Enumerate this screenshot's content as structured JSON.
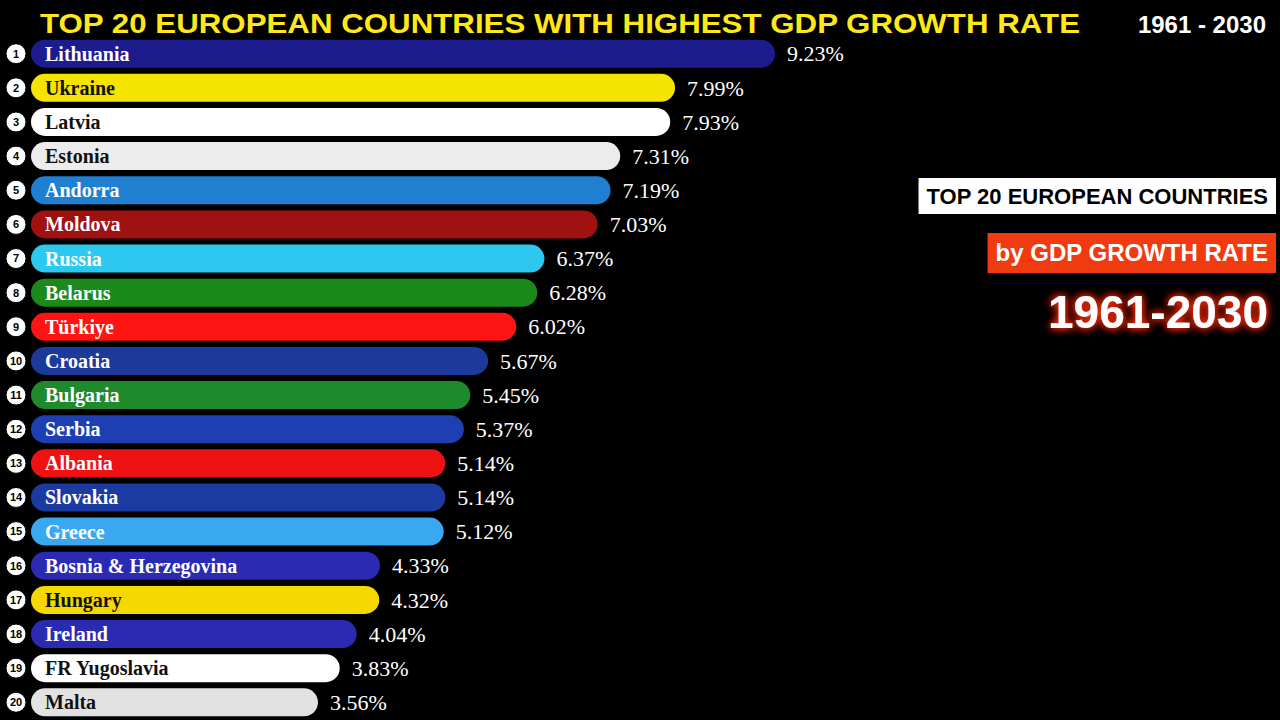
{
  "chart_data": {
    "type": "bar",
    "title": "TOP 20 EUROPEAN COUNTRIES WITH HIGHEST GDP GROWTH RATE",
    "subtitle": "1961 - 2030",
    "annotations": [
      "TOP 20 EUROPEAN COUNTRIES",
      "by GDP GROWTH RATE",
      "1961-2030"
    ],
    "orientation": "horizontal",
    "ranks": [
      1,
      2,
      3,
      4,
      5,
      6,
      7,
      8,
      9,
      10,
      11,
      12,
      13,
      14,
      15,
      16,
      17,
      18,
      19,
      20
    ],
    "categories": [
      "Lithuania",
      "Ukraine",
      "Latvia",
      "Estonia",
      "Andorra",
      "Moldova",
      "Russia",
      "Belarus",
      "Türkiye",
      "Croatia",
      "Bulgaria",
      "Serbia",
      "Albania",
      "Slovakia",
      "Greece",
      "Bosnia & Herzegovina",
      "Hungary",
      "Ireland",
      "FR Yugoslavia",
      "Malta"
    ],
    "values": [
      9.23,
      7.99,
      7.93,
      7.31,
      7.19,
      7.03,
      6.37,
      6.28,
      6.02,
      5.67,
      5.45,
      5.37,
      5.14,
      5.14,
      5.12,
      4.33,
      4.32,
      4.04,
      3.83,
      3.56
    ],
    "value_labels": [
      "9.23%",
      "7.99%",
      "7.93%",
      "7.31%",
      "7.19%",
      "7.03%",
      "6.37%",
      "6.28%",
      "6.02%",
      "5.67%",
      "5.45%",
      "5.37%",
      "5.14%",
      "5.14%",
      "5.12%",
      "4.33%",
      "4.32%",
      "4.04%",
      "3.83%",
      "3.56%"
    ],
    "colors": [
      "#1c1c8f",
      "#f5e400",
      "#ffffff",
      "#ececec",
      "#1f7fd0",
      "#a01212",
      "#2cc8f0",
      "#1b8a1b",
      "#ff1414",
      "#1b3a9c",
      "#1e8a2c",
      "#1d3fb2",
      "#ee1212",
      "#1b3aa2",
      "#3aa8f0",
      "#2a2ab2",
      "#f5d800",
      "#2a2ab2",
      "#ffffff",
      "#e2e2e2"
    ],
    "xlim": [
      0,
      9.23
    ],
    "data_labels": true,
    "tick_labels": false,
    "grid": false
  }
}
